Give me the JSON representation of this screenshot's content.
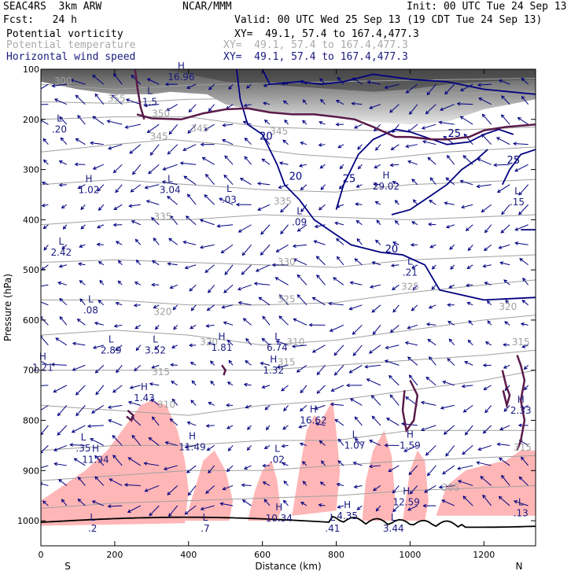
{
  "header": {
    "model": "SEAC4RS  3km ARW",
    "org": "NCAR/MMM",
    "init": "Init: 00 UTC Tue 24 Sep 13",
    "fcst": "Fcst:   24 h",
    "valid": "Valid: 00 UTC Wed 25 Sep 13 (19 CDT Tue 24 Sep 13)",
    "fields": [
      {
        "name": "Potential vorticity",
        "xy": "XY=  49.1, 57.4 to 167.4,477.3",
        "color": "#000000"
      },
      {
        "name": "Potential temperature",
        "xy": "XY=  49.1, 57.4 to 167.4,477.3",
        "color": "#aaaaaa"
      },
      {
        "name": "Horizontal wind speed",
        "xy": "XY=  49.1, 57.4 to 167.4,477.3",
        "color": "#1a1a80"
      }
    ]
  },
  "chart_data": {
    "type": "cross-section",
    "xlabel": "Distance (km)",
    "ylabel": "Pressure (hPa)",
    "xlim": [
      0,
      1340
    ],
    "ylim": [
      1050,
      100
    ],
    "x_ticks": [
      "0",
      "200",
      "400",
      "600",
      "800",
      "1000",
      "1200"
    ],
    "y_ticks": [
      "100",
      "200",
      "300",
      "400",
      "500",
      "600",
      "700",
      "800",
      "900",
      "1000"
    ],
    "left_end": "S",
    "right_end": "N",
    "colors": {
      "pv_shading": "#ffb6b6",
      "pv_contour": "#5a1a4a",
      "theta": "#a0a0a0",
      "wind": "#000080",
      "terrain": "#000000"
    },
    "theta_labels": [
      {
        "text": "300",
        "x": 60,
        "p": 130
      },
      {
        "text": "355",
        "x": 205,
        "p": 165
      },
      {
        "text": "350",
        "x": 325,
        "p": 195
      },
      {
        "text": "345",
        "x": 320,
        "p": 240
      },
      {
        "text": "345",
        "x": 430,
        "p": 225
      },
      {
        "text": "345",
        "x": 645,
        "p": 230
      },
      {
        "text": "335",
        "x": 330,
        "p": 400
      },
      {
        "text": "335",
        "x": 655,
        "p": 370
      },
      {
        "text": "330",
        "x": 665,
        "p": 490
      },
      {
        "text": "325",
        "x": 665,
        "p": 565
      },
      {
        "text": "325",
        "x": 1000,
        "p": 540
      },
      {
        "text": "320",
        "x": 330,
        "p": 590
      },
      {
        "text": "320",
        "x": 455,
        "p": 650
      },
      {
        "text": "320",
        "x": 1265,
        "p": 580
      },
      {
        "text": "315",
        "x": 325,
        "p": 710
      },
      {
        "text": "315",
        "x": 665,
        "p": 690
      },
      {
        "text": "310",
        "x": 690,
        "p": 650
      },
      {
        "text": "310",
        "x": 340,
        "p": 775
      },
      {
        "text": "315",
        "x": 1300,
        "p": 650
      },
      {
        "text": "315",
        "x": 1305,
        "p": 860
      },
      {
        "text": "305",
        "x": 1110,
        "p": 940
      }
    ],
    "wind_speed_labels": [
      {
        "text": "20",
        "x": 610,
        "p": 240
      },
      {
        "text": "20",
        "x": 690,
        "p": 320
      },
      {
        "text": "20",
        "x": 950,
        "p": 465
      },
      {
        "text": "25",
        "x": 835,
        "p": 325
      },
      {
        "text": "25",
        "x": 1120,
        "p": 235
      },
      {
        "text": "25",
        "x": 1280,
        "p": 288
      }
    ],
    "extrema": [
      {
        "type": "H",
        "value": "16.96",
        "x": 380,
        "p": 120
      },
      {
        "type": "L",
        "value": "1.5",
        "x": 295,
        "p": 170
      },
      {
        "type": "L",
        "value": ".20",
        "x": 50,
        "p": 225
      },
      {
        "type": "H",
        "value": "1.02",
        "x": 130,
        "p": 345
      },
      {
        "type": "L",
        "value": "3.04",
        "x": 350,
        "p": 345
      },
      {
        "type": "L",
        "value": ".03",
        "x": 510,
        "p": 365
      },
      {
        "type": "H",
        "value": "29.02",
        "x": 935,
        "p": 338
      },
      {
        "type": "L",
        "value": ".15",
        "x": 1290,
        "p": 370
      },
      {
        "type": "L",
        "value": ".09",
        "x": 700,
        "p": 410
      },
      {
        "type": "L",
        "value": "2.42",
        "x": 55,
        "p": 470
      },
      {
        "type": "L",
        "value": ".21",
        "x": 1000,
        "p": 510
      },
      {
        "type": "L",
        "value": ".08",
        "x": 135,
        "p": 585
      },
      {
        "type": "L",
        "value": "2.89",
        "x": 190,
        "p": 665
      },
      {
        "type": "L",
        "value": "3.52",
        "x": 310,
        "p": 665
      },
      {
        "type": "H",
        "value": "1.81",
        "x": 490,
        "p": 660
      },
      {
        "type": "L",
        "value": "6.74",
        "x": 640,
        "p": 660
      },
      {
        "type": "H",
        "value": "1.32",
        "x": 630,
        "p": 705
      },
      {
        "type": "H",
        "value": "1.21",
        "x": 5,
        "p": 700
      },
      {
        "type": "H",
        "value": "1.43",
        "x": 280,
        "p": 760
      },
      {
        "type": "H",
        "value": "16.62",
        "x": 738,
        "p": 805
      },
      {
        "type": "H",
        "value": "2.33",
        "x": 1300,
        "p": 785
      },
      {
        "type": "L",
        "value": "1.07",
        "x": 850,
        "p": 855
      },
      {
        "type": "H",
        "value": "1.59",
        "x": 1000,
        "p": 855
      },
      {
        "type": "H",
        "value": "11.49",
        "x": 410,
        "p": 858
      },
      {
        "type": "L",
        "value": ".35",
        "x": 115,
        "p": 860
      },
      {
        "type": "H",
        "value": "11.94",
        "x": 148,
        "p": 883
      },
      {
        "type": "L",
        "value": ".02",
        "x": 640,
        "p": 883
      },
      {
        "type": "H",
        "value": "12.59",
        "x": 990,
        "p": 968
      },
      {
        "type": "H",
        "value": "4.35",
        "x": 830,
        "p": 995
      },
      {
        "type": "H",
        "value": "10.34",
        "x": 645,
        "p": 1000
      },
      {
        "type": "L",
        "value": ".13",
        "x": 1300,
        "p": 990
      },
      {
        "type": "L",
        "value": ".2",
        "x": 140,
        "p": 1020
      },
      {
        "type": "L",
        "value": "3.44",
        "x": 955,
        "p": 1020
      },
      {
        "type": "L",
        "value": ".41",
        "x": 790,
        "p": 1020
      },
      {
        "type": "L",
        "value": ".7",
        "x": 445,
        "p": 1020
      }
    ],
    "grid": false
  }
}
